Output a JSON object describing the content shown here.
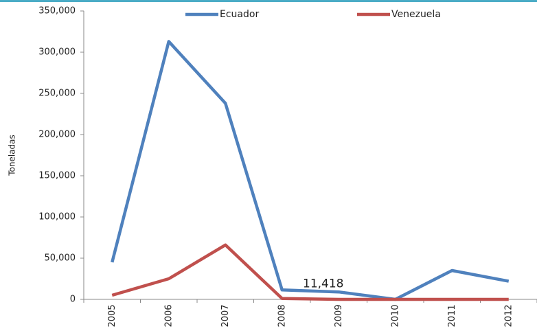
{
  "chart_data": {
    "type": "line",
    "y_label": "Toneladas",
    "categories": [
      "2005",
      "2006",
      "2007",
      "2008",
      "2009",
      "2010",
      "2011",
      "2012"
    ],
    "series": [
      {
        "name": "Ecuador",
        "color": "#4f81bd",
        "values": [
          45000,
          313000,
          238000,
          11418,
          9000,
          0,
          35000,
          22000
        ],
        "value_labels": [
          null,
          null,
          null,
          "11,418",
          null,
          null,
          null,
          null
        ]
      },
      {
        "name": "Venezuela",
        "color": "#c0504d",
        "values": [
          5000,
          25000,
          66000,
          1000,
          0,
          0,
          0,
          0
        ]
      }
    ],
    "ylim": [
      0,
      350000
    ],
    "yticks": [
      0,
      {
        "value": 50000,
        "label": "50,000"
      },
      {
        "value": 100000,
        "label": "100,000"
      },
      {
        "value": 150000,
        "label": "150,000"
      },
      {
        "value": 200000,
        "label": "200,000"
      },
      {
        "value": 250000,
        "label": "250,000"
      },
      {
        "value": 300000,
        "label": "300,000"
      },
      {
        "value": 350000,
        "label": "350,000"
      }
    ],
    "grid": false,
    "legend": "top"
  }
}
